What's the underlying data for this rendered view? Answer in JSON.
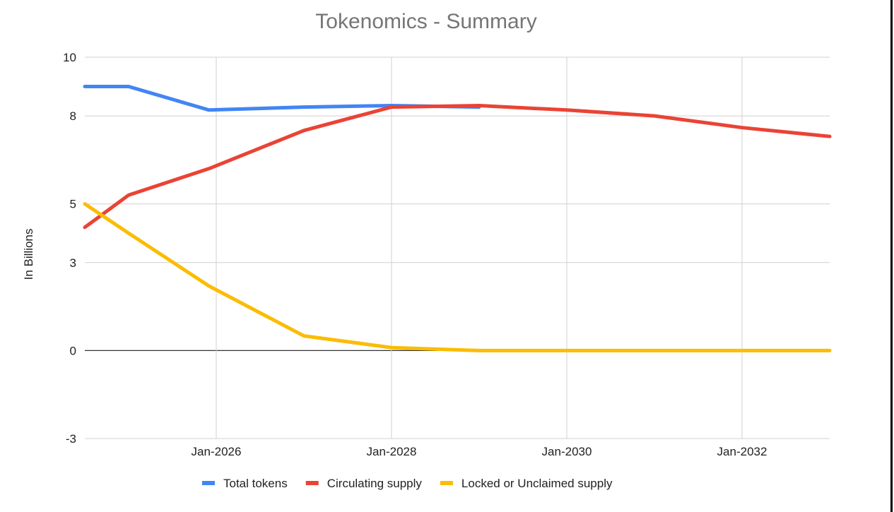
{
  "chart_data": {
    "type": "line",
    "title": "Tokenomics - Summary",
    "xlabel": "",
    "ylabel": "In Billions",
    "x": [
      "2024-07",
      "2025-01",
      "2025-12",
      "2027-01",
      "2028-01",
      "2029-01",
      "2030-01",
      "2031-01",
      "2032-01",
      "2033-01"
    ],
    "x_ticks": [
      "Jan-2026",
      "Jan-2028",
      "Jan-2030",
      "Jan-2032"
    ],
    "y_ticks": [
      "10",
      "8",
      "5",
      "3",
      "0",
      "-3"
    ],
    "ylim": [
      -3,
      10
    ],
    "grid": true,
    "legend_position": "bottom",
    "series": [
      {
        "name": "Total tokens",
        "color": "#4285f4",
        "values": [
          9.0,
          9.0,
          8.2,
          8.3,
          8.35,
          8.3,
          null,
          null,
          null,
          null
        ]
      },
      {
        "name": "Circulating supply",
        "color": "#ea4335",
        "values": [
          4.2,
          5.3,
          6.2,
          7.5,
          8.3,
          8.35,
          8.2,
          8.0,
          7.6,
          7.3
        ]
      },
      {
        "name": "Locked or Unclaimed supply",
        "color": "#fbbc04",
        "values": [
          5.0,
          4.0,
          2.2,
          0.5,
          0.1,
          0.0,
          0.0,
          0.0,
          0.0,
          0.0
        ]
      }
    ]
  }
}
